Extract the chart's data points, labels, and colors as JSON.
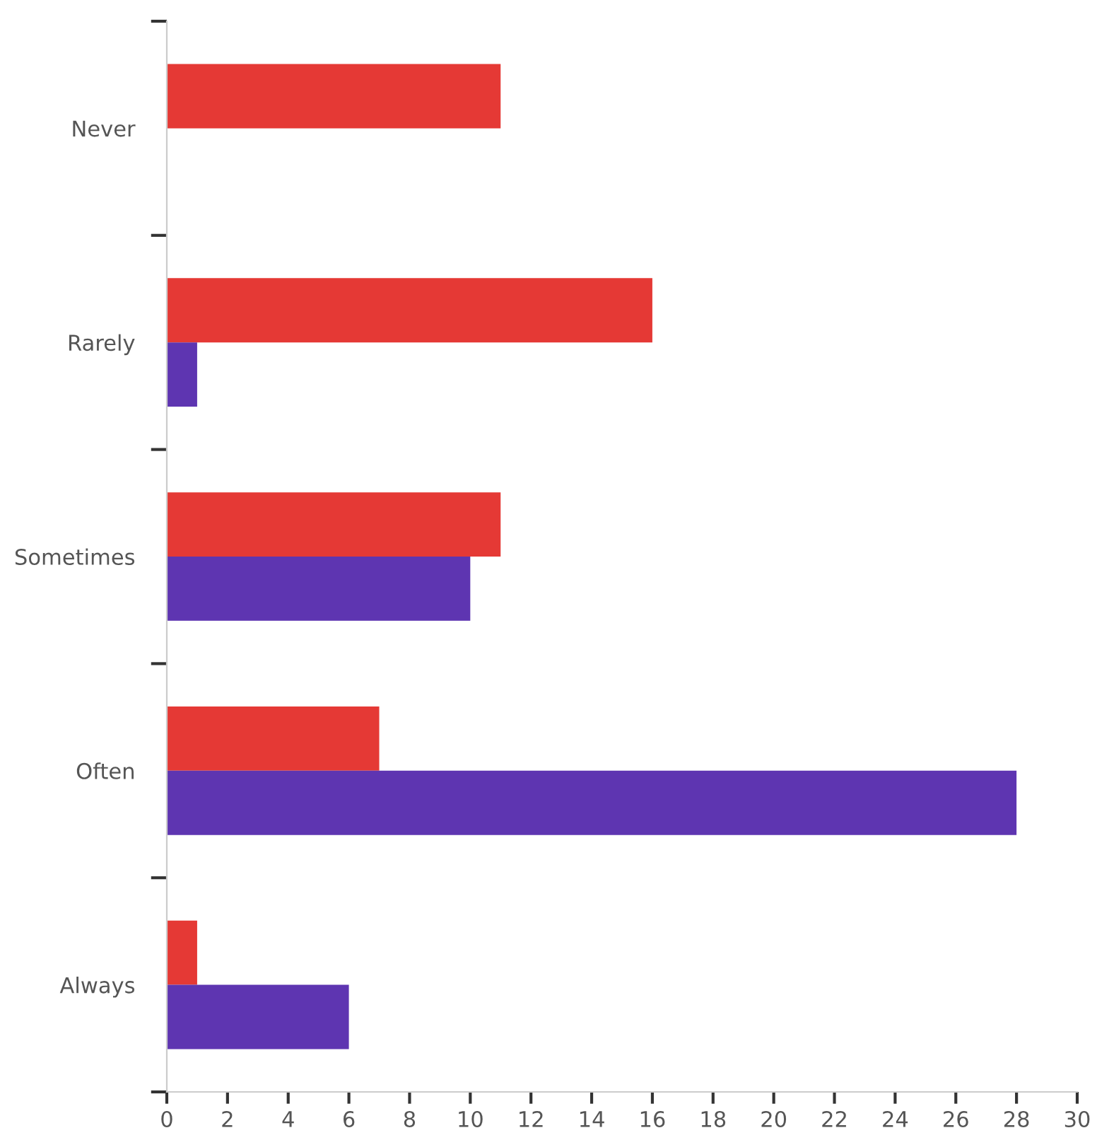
{
  "chart_data": {
    "type": "bar",
    "orientation": "horizontal",
    "categories": [
      "Never",
      "Rarely",
      "Sometimes",
      "Often",
      "Always"
    ],
    "series": [
      {
        "color": "#e53935",
        "values": [
          11,
          16,
          11,
          7,
          1
        ]
      },
      {
        "color": "#5e35b1",
        "values": [
          0,
          1,
          10,
          28,
          6
        ]
      }
    ],
    "xlim": [
      0,
      30
    ],
    "xticks": [
      0,
      2,
      4,
      6,
      8,
      10,
      12,
      14,
      16,
      18,
      20,
      22,
      24,
      26,
      28,
      30
    ],
    "grid": false
  }
}
